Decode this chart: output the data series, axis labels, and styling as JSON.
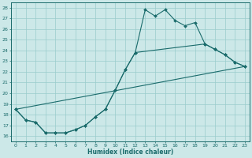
{
  "xlabel": "Humidex (Indice chaleur)",
  "bg_color": "#cce8e8",
  "grid_color": "#99cccc",
  "line_color": "#1a6b6b",
  "xlim": [
    -0.5,
    23.5
  ],
  "ylim": [
    15.5,
    28.5
  ],
  "xticks": [
    0,
    1,
    2,
    3,
    4,
    5,
    6,
    7,
    8,
    9,
    10,
    11,
    12,
    13,
    14,
    15,
    16,
    17,
    18,
    19,
    20,
    21,
    22,
    23
  ],
  "yticks": [
    16,
    17,
    18,
    19,
    20,
    21,
    22,
    23,
    24,
    25,
    26,
    27,
    28
  ],
  "curve1_x": [
    0,
    1,
    2,
    3,
    4,
    5,
    6,
    7,
    8,
    9,
    10,
    11,
    12,
    13,
    14,
    15,
    16,
    17,
    18,
    19,
    20,
    21,
    22,
    23
  ],
  "curve1_y": [
    18.5,
    17.5,
    17.3,
    16.3,
    16.3,
    16.3,
    16.6,
    17.0,
    17.8,
    18.5,
    20.3,
    22.2,
    23.8,
    27.8,
    27.2,
    27.8,
    26.8,
    26.3,
    26.6,
    24.6,
    24.1,
    23.6,
    22.9,
    22.5
  ],
  "curve2_x": [
    0,
    1,
    2,
    3,
    4,
    5,
    6,
    7,
    8,
    9,
    10,
    11,
    12,
    19,
    20,
    21,
    22,
    23
  ],
  "curve2_y": [
    18.5,
    17.5,
    17.3,
    16.3,
    16.3,
    16.3,
    16.6,
    17.0,
    17.8,
    18.5,
    20.3,
    22.2,
    23.8,
    24.6,
    24.1,
    23.6,
    22.9,
    22.5
  ],
  "curve3_x": [
    0,
    23
  ],
  "curve3_y": [
    18.5,
    22.5
  ]
}
